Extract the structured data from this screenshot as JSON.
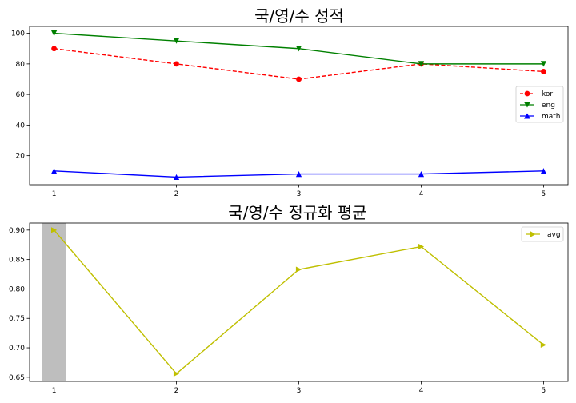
{
  "chart_data": [
    {
      "type": "line",
      "title": "국/영/수 성적",
      "xlabel": "",
      "ylabel": "",
      "x": [
        1,
        2,
        3,
        4,
        5
      ],
      "xlim": [
        0.8,
        5.2
      ],
      "ylim": [
        1.0,
        104.5
      ],
      "yticks": [
        20,
        40,
        60,
        80,
        100
      ],
      "grid": false,
      "legend_position": "center-right",
      "series": [
        {
          "name": "kor",
          "values": [
            90,
            80,
            70,
            80,
            75
          ],
          "color": "#ff0000",
          "linestyle": "dashed",
          "marker": "circle"
        },
        {
          "name": "eng",
          "values": [
            100,
            95,
            90,
            80,
            80
          ],
          "color": "#008000",
          "linestyle": "solid",
          "marker": "triangle-down"
        },
        {
          "name": "math",
          "values": [
            10,
            6,
            8,
            8,
            10
          ],
          "color": "#0000ff",
          "linestyle": "solid",
          "marker": "triangle-up"
        }
      ]
    },
    {
      "type": "line",
      "title": "국/영/수 정규화 평균",
      "xlabel": "",
      "ylabel": "",
      "x": [
        1,
        2,
        3,
        4,
        5
      ],
      "xlim": [
        0.8,
        5.2
      ],
      "ylim": [
        0.643,
        0.912
      ],
      "yticks": [
        0.65,
        0.7,
        0.75,
        0.8,
        0.85,
        0.9
      ],
      "grid": false,
      "legend_position": "top-right",
      "highlight_span": [
        0.9,
        1.1
      ],
      "highlight_color": "#bebebe",
      "series": [
        {
          "name": "avg",
          "values": [
            0.9,
            0.656,
            0.833,
            0.872,
            0.705
          ],
          "color": "#bfbf00",
          "linestyle": "solid",
          "marker": "triangle-right"
        }
      ]
    }
  ]
}
